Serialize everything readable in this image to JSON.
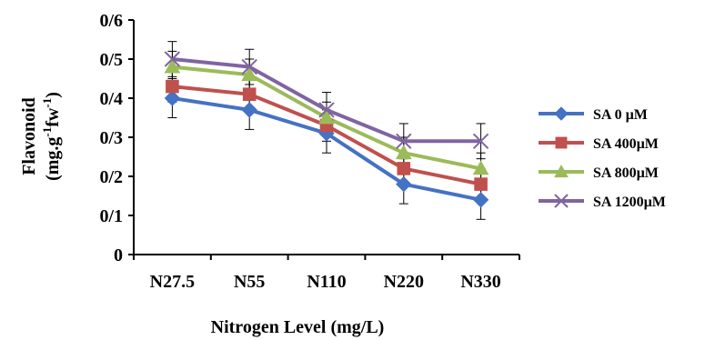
{
  "chart_data": {
    "type": "line",
    "title": "",
    "xlabel": "Nitrogen Level (mg/L)",
    "ylabel_line1": "Flavonoid",
    "ylabel_line2_prefix": "(mg.g",
    "ylabel_sup1": "-1",
    "ylabel_mid": "fw",
    "ylabel_sup2": "-1",
    "ylabel_suffix": ")",
    "categories": [
      "N27.5",
      "N55",
      "N110",
      "N220",
      "N330"
    ],
    "ylim": [
      0,
      0.6
    ],
    "yticks": [
      0,
      0.1,
      0.2,
      0.3,
      0.4,
      0.5,
      0.6
    ],
    "ytick_labels": [
      "0",
      "0/1",
      "0/2",
      "0/3",
      "0/4",
      "0/5",
      "0/6"
    ],
    "grid": false,
    "legend_position": "right",
    "series": [
      {
        "name": "SA  0 µM",
        "color": "#4472C4",
        "marker": "diamond",
        "values": [
          0.4,
          0.37,
          0.31,
          0.18,
          0.14
        ],
        "errors": [
          0.05,
          0.05,
          0.05,
          0.05,
          0.05
        ]
      },
      {
        "name": "SA  400µM",
        "color": "#C0504D",
        "marker": "square",
        "values": [
          0.43,
          0.41,
          0.33,
          0.22,
          0.18
        ],
        "errors": [
          0.04,
          0.04,
          0.04,
          0.04,
          0.04
        ]
      },
      {
        "name": "SA  800µM",
        "color": "#9BBB59",
        "marker": "triangle",
        "values": [
          0.48,
          0.46,
          0.35,
          0.26,
          0.22
        ],
        "errors": [
          0.04,
          0.04,
          0.04,
          0.04,
          0.04
        ]
      },
      {
        "name": "SA  1200µM",
        "color": "#8064A2",
        "marker": "x",
        "values": [
          0.5,
          0.48,
          0.37,
          0.29,
          0.29
        ],
        "errors": [
          0.045,
          0.045,
          0.045,
          0.045,
          0.045
        ]
      }
    ]
  }
}
